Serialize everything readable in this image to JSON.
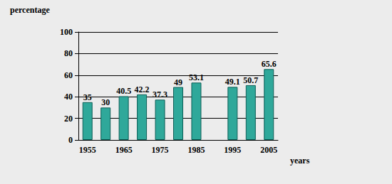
{
  "chart_data": {
    "type": "bar",
    "x_label": "years",
    "y_label": "percentage",
    "categories": [
      "1955",
      null,
      "1965",
      null,
      "1975",
      null,
      "1985",
      null,
      "1995",
      null,
      "2005"
    ],
    "values": [
      35,
      30,
      40.5,
      42.2,
      37.3,
      49,
      53.1,
      null,
      49.1,
      50.7,
      65.6
    ],
    "color": "#2fa89a",
    "ylim": [
      0,
      100
    ],
    "yticks": [
      0,
      20,
      40,
      60,
      80,
      100
    ],
    "grid": true,
    "data_labels": true
  }
}
